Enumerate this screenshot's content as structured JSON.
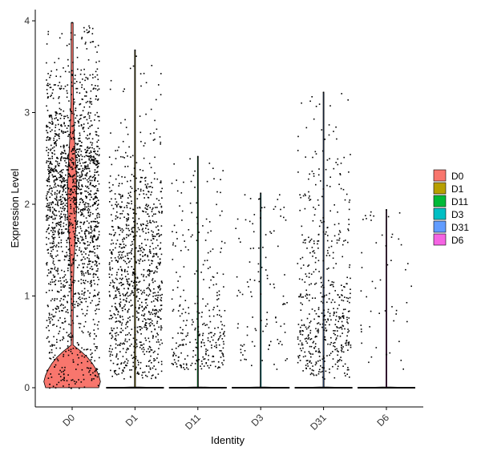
{
  "chart_data": {
    "type": "violin",
    "title": "",
    "xlabel": "Identity",
    "ylabel": "Expression Level",
    "ylim": [
      -0.2,
      4.05
    ],
    "yticks": [
      0,
      1,
      2,
      3,
      4
    ],
    "grid": false,
    "legend_position": "right",
    "categories": [
      "D0",
      "D1",
      "D11",
      "D3",
      "D31",
      "D6"
    ],
    "colors": [
      "#F8766D",
      "#B79F00",
      "#00BA38",
      "#00BFC4",
      "#619CFF",
      "#F564E3"
    ],
    "series": [
      {
        "name": "D0",
        "max": 3.98,
        "n_points": 1800,
        "n_zero": 0,
        "dist": [
          [
            0,
            0.05
          ],
          [
            0.3,
            0.04
          ],
          [
            0.8,
            0.07
          ],
          [
            1.2,
            0.09
          ],
          [
            1.6,
            0.12
          ],
          [
            2.0,
            0.18
          ],
          [
            2.3,
            0.22
          ],
          [
            2.6,
            0.13
          ],
          [
            3.0,
            0.07
          ],
          [
            3.5,
            0.03
          ],
          [
            3.98,
            0.01
          ]
        ]
      },
      {
        "name": "D1",
        "max": 3.68,
        "n_points": 1000,
        "n_zero": 3000,
        "dist": [
          [
            0.1,
            0.12
          ],
          [
            0.5,
            0.18
          ],
          [
            1.0,
            0.2
          ],
          [
            1.5,
            0.22
          ],
          [
            2.0,
            0.2
          ],
          [
            2.3,
            0.06
          ],
          [
            2.8,
            0.015
          ],
          [
            3.68,
            0.005
          ]
        ]
      },
      {
        "name": "D11",
        "max": 2.52,
        "n_points": 300,
        "n_zero": 3000,
        "dist": [
          [
            0.2,
            0.2
          ],
          [
            0.4,
            0.35
          ],
          [
            0.6,
            0.18
          ],
          [
            0.9,
            0.12
          ],
          [
            1.3,
            0.07
          ],
          [
            1.8,
            0.05
          ],
          [
            2.52,
            0.03
          ]
        ]
      },
      {
        "name": "D3",
        "max": 2.12,
        "n_points": 110,
        "n_zero": 3000,
        "dist": [
          [
            0.2,
            0.1
          ],
          [
            0.5,
            0.2
          ],
          [
            0.9,
            0.2
          ],
          [
            1.3,
            0.2
          ],
          [
            1.7,
            0.18
          ],
          [
            2.12,
            0.12
          ]
        ]
      },
      {
        "name": "D31",
        "max": 3.22,
        "n_points": 520,
        "n_zero": 3000,
        "dist": [
          [
            0.1,
            0.15
          ],
          [
            0.4,
            0.3
          ],
          [
            0.8,
            0.2
          ],
          [
            1.2,
            0.12
          ],
          [
            1.7,
            0.1
          ],
          [
            2.3,
            0.08
          ],
          [
            2.6,
            0.04
          ],
          [
            3.22,
            0.01
          ]
        ]
      },
      {
        "name": "D6",
        "max": 1.94,
        "n_points": 50,
        "n_zero": 3000,
        "dist": [
          [
            0.2,
            0.2
          ],
          [
            0.6,
            0.25
          ],
          [
            1.0,
            0.2
          ],
          [
            1.5,
            0.2
          ],
          [
            1.94,
            0.15
          ]
        ]
      }
    ]
  }
}
